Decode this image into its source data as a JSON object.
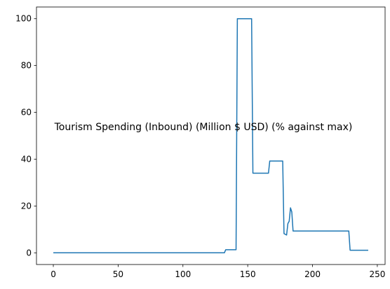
{
  "chart_data": {
    "type": "line",
    "title": "Tourism Spending (Inbound) (Million $ USD) (% against max)",
    "xlabel": "",
    "ylabel": "",
    "xlim": [
      -13,
      256
    ],
    "ylim": [
      -5,
      105
    ],
    "x_ticks": [
      0,
      50,
      100,
      150,
      200,
      250
    ],
    "y_ticks": [
      0,
      20,
      40,
      60,
      80,
      100
    ],
    "grid": false,
    "series": [
      {
        "color": "#1f77b4",
        "points": [
          [
            0,
            0
          ],
          [
            132,
            0
          ],
          [
            133,
            1.3
          ],
          [
            141,
            1.3
          ],
          [
            142,
            100
          ],
          [
            153,
            100
          ],
          [
            154,
            34
          ],
          [
            166,
            34
          ],
          [
            167,
            39.2
          ],
          [
            177,
            39.2
          ],
          [
            178,
            8.2
          ],
          [
            180,
            7.6
          ],
          [
            181,
            12.5
          ],
          [
            182,
            13.5
          ],
          [
            183,
            19.2
          ],
          [
            184,
            17.5
          ],
          [
            185,
            9.3
          ],
          [
            228,
            9.3
          ],
          [
            229,
            1.1
          ],
          [
            243,
            1.1
          ]
        ]
      }
    ]
  }
}
